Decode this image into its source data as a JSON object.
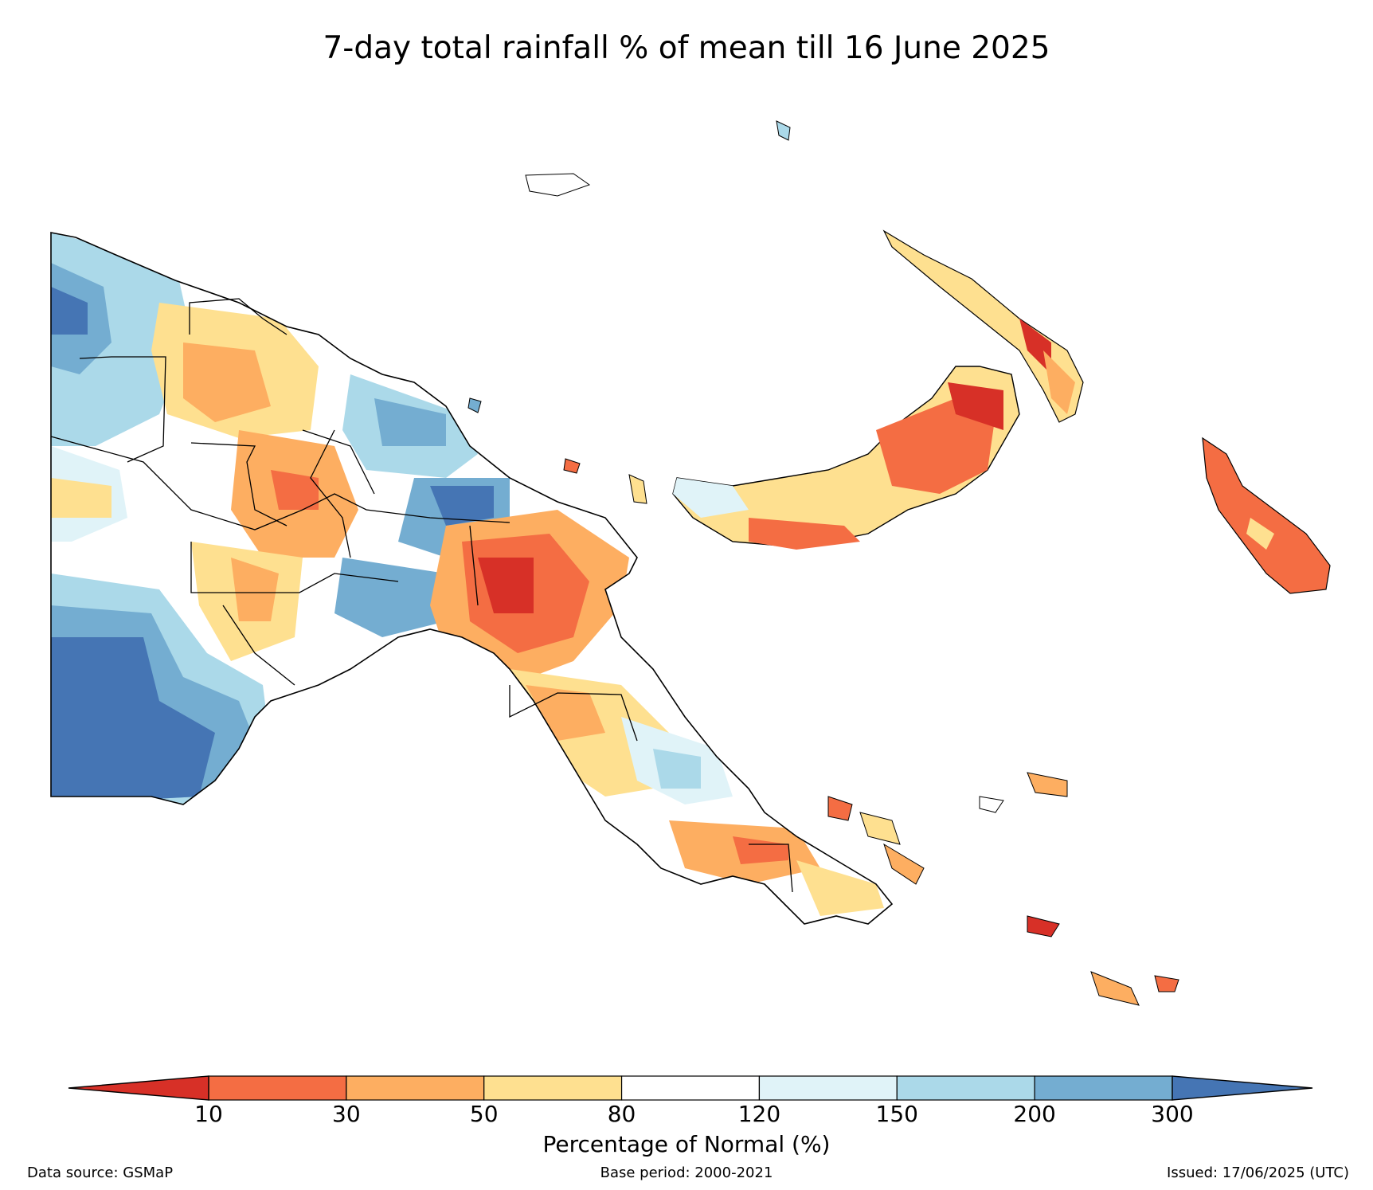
{
  "title": "7-day total rainfall % of mean till 16 June 2025",
  "legend": {
    "label": "Percentage of Normal (%)",
    "ticks": [
      "10",
      "30",
      "50",
      "80",
      "120",
      "150",
      "200",
      "300"
    ],
    "bins": [
      {
        "range": "<10",
        "color": "#d73027"
      },
      {
        "range": "10-30",
        "color": "#f46d43"
      },
      {
        "range": "30-50",
        "color": "#fdae61"
      },
      {
        "range": "50-80",
        "color": "#fee090"
      },
      {
        "range": "80-120",
        "color": "#ffffff"
      },
      {
        "range": "120-150",
        "color": "#e0f3f8"
      },
      {
        "range": "150-200",
        "color": "#abd9e9"
      },
      {
        "range": "200-300",
        "color": "#74add1"
      },
      {
        "range": ">300",
        "color": "#4575b4"
      }
    ]
  },
  "footer": {
    "source": "Data source: GSMaP",
    "base_period": "Base period: 2000-2021",
    "issued": "Issued: 17/06/2025 (UTC)"
  },
  "colors": {
    "outline": "#000000"
  }
}
